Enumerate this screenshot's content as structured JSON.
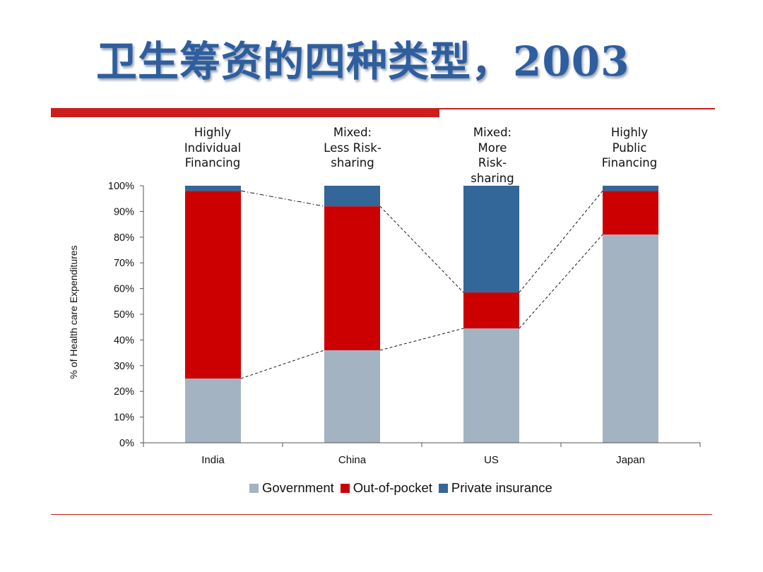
{
  "slide": {
    "title": "卫生筹资的四种类型，2003",
    "headings": [
      "Highly\nIndividual\nFinancing",
      "Mixed:\nLess Risk-\nsharing",
      "Mixed:\nMore\nRisk-\nsharing",
      "Highly\nPublic\nFinancing"
    ],
    "accent_color": "#cc1d1d",
    "title_color": "#2e5e9e"
  },
  "chart_data": {
    "type": "bar",
    "stacked": true,
    "categories": [
      "India",
      "China",
      "US",
      "Japan"
    ],
    "series": [
      {
        "name": "Government",
        "values": [
          25,
          36,
          44.5,
          81
        ],
        "color": "#a4b3c2"
      },
      {
        "name": "Out-of-pocket",
        "values": [
          73,
          56,
          14,
          17
        ],
        "color": "#cc0000"
      },
      {
        "name": "Private insurance",
        "values": [
          2,
          8,
          41.5,
          2
        ],
        "color": "#336699"
      }
    ],
    "ylabel": "% of Health care Expenditures",
    "ylim": [
      0,
      100
    ],
    "yticks": [
      "0%",
      "10%",
      "20%",
      "30%",
      "40%",
      "50%",
      "60%",
      "70%",
      "80%",
      "90%",
      "100%"
    ],
    "grid": false,
    "legend": "bottom",
    "connector_lines": "dashed"
  }
}
